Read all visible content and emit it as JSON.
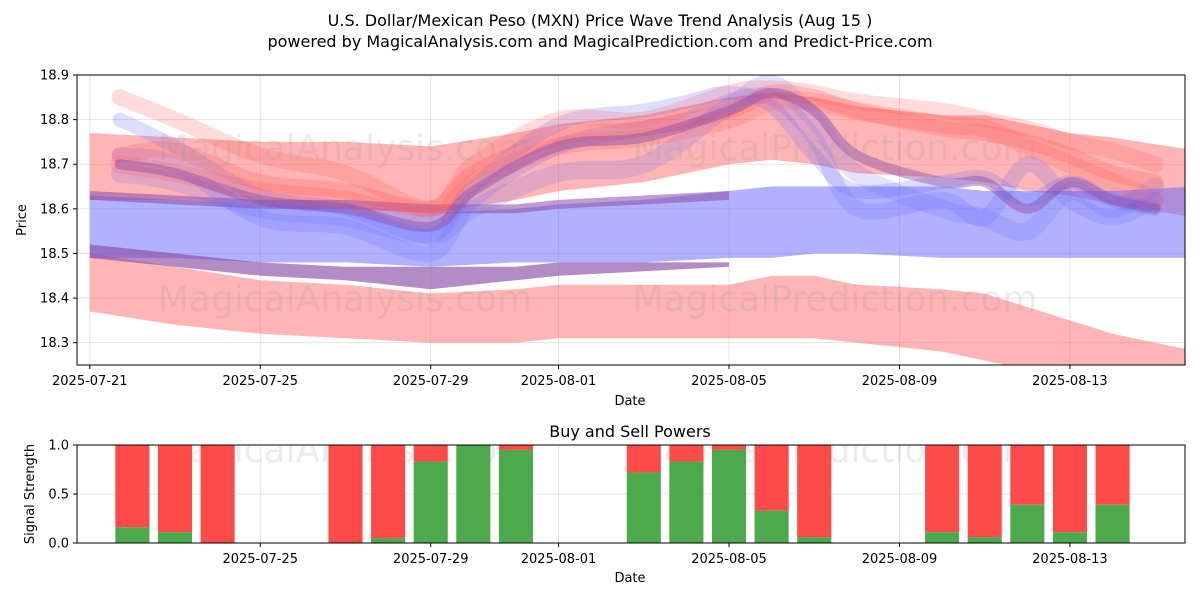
{
  "chart_data": [
    {
      "type": "area",
      "title_line1": "U.S. Dollar/Mexican Peso (MXN) Price Wave Trend Analysis (Aug 15 )",
      "title_line2": "powered by MagicalAnalysis.com and MagicalPrediction.com and Predict-Price.com",
      "xlabel": "Date",
      "ylabel": "Price",
      "xlim_days": [
        -0.3,
        25.7
      ],
      "ylim": [
        18.25,
        18.9
      ],
      "yticks": [
        18.3,
        18.4,
        18.5,
        18.6,
        18.7,
        18.8,
        18.9
      ],
      "xticks": [
        {
          "day": 0,
          "label": "2025-07-21"
        },
        {
          "day": 4,
          "label": "2025-07-25"
        },
        {
          "day": 8,
          "label": "2025-07-29"
        },
        {
          "day": 11,
          "label": "2025-08-01"
        },
        {
          "day": 15,
          "label": "2025-08-05"
        },
        {
          "day": 19,
          "label": "2025-08-09"
        },
        {
          "day": 23,
          "label": "2025-08-13"
        }
      ],
      "watermarks": [
        "MagicalAnalysis.com",
        "MagicalPrediction.com"
      ],
      "colors": {
        "red": "#ff5a5a",
        "blue": "#6464ff",
        "purple": "#8a4ea8"
      },
      "bands": [
        {
          "name": "lower-red-channel",
          "color": "red",
          "opacity": 0.45,
          "x": [
            0,
            2,
            4,
            6,
            8,
            10,
            11,
            13,
            15,
            16,
            17,
            18,
            20,
            21,
            22,
            23,
            24,
            26
          ],
          "upper": [
            18.5,
            18.47,
            18.44,
            18.43,
            18.41,
            18.42,
            18.43,
            18.43,
            18.43,
            18.45,
            18.45,
            18.43,
            18.42,
            18.41,
            18.38,
            18.35,
            18.32,
            18.28
          ],
          "lower": [
            18.37,
            18.34,
            18.32,
            18.31,
            18.3,
            18.3,
            18.31,
            18.31,
            18.31,
            18.31,
            18.31,
            18.3,
            18.28,
            18.26,
            18.24,
            18.22,
            18.2,
            18.18
          ]
        },
        {
          "name": "upper-red-channel",
          "color": "red",
          "opacity": 0.45,
          "x": [
            0,
            2,
            4,
            6,
            8,
            10,
            11,
            13,
            15,
            16,
            17,
            18,
            20,
            21,
            22,
            23,
            24,
            26
          ],
          "upper": [
            18.77,
            18.76,
            18.75,
            18.75,
            18.74,
            18.77,
            18.79,
            18.81,
            18.85,
            18.86,
            18.85,
            18.83,
            18.81,
            18.81,
            18.79,
            18.77,
            18.76,
            18.73
          ],
          "lower": [
            18.62,
            18.62,
            18.61,
            18.6,
            18.59,
            18.62,
            18.64,
            18.66,
            18.7,
            18.71,
            18.7,
            18.68,
            18.67,
            18.66,
            18.64,
            18.63,
            18.61,
            18.58
          ]
        },
        {
          "name": "blue-channel",
          "color": "blue",
          "opacity": 0.5,
          "x": [
            0,
            2,
            4,
            6,
            8,
            10,
            11,
            13,
            15,
            16,
            17,
            18,
            20,
            21,
            22,
            23,
            24,
            26
          ],
          "upper": [
            18.63,
            18.62,
            18.61,
            18.6,
            18.59,
            18.6,
            18.61,
            18.62,
            18.64,
            18.65,
            18.65,
            18.65,
            18.65,
            18.64,
            18.64,
            18.64,
            18.64,
            18.65
          ],
          "lower": [
            18.49,
            18.49,
            18.48,
            18.48,
            18.47,
            18.48,
            18.48,
            18.48,
            18.49,
            18.49,
            18.5,
            18.5,
            18.49,
            18.49,
            18.49,
            18.49,
            18.49,
            18.49
          ]
        },
        {
          "name": "purple-overlap",
          "color": "purple",
          "opacity": 0.65,
          "x": [
            0,
            2,
            4,
            6,
            8,
            10,
            11,
            13,
            15
          ],
          "upper": [
            18.52,
            18.5,
            18.48,
            18.47,
            18.47,
            18.47,
            18.48,
            18.48,
            18.48
          ],
          "lower": [
            18.49,
            18.47,
            18.45,
            18.44,
            18.42,
            18.44,
            18.45,
            18.46,
            18.47
          ]
        },
        {
          "name": "purple-top-edge",
          "color": "purple",
          "opacity": 0.55,
          "x": [
            0,
            2,
            4,
            6,
            8,
            10,
            11,
            13,
            15
          ],
          "upper": [
            18.64,
            18.63,
            18.62,
            18.62,
            18.61,
            18.61,
            18.62,
            18.63,
            18.64
          ],
          "lower": [
            18.62,
            18.61,
            18.6,
            18.6,
            18.59,
            18.59,
            18.6,
            18.61,
            18.62
          ]
        }
      ],
      "waves": [
        {
          "name": "wave-blue-1",
          "color": "blue",
          "opacity": 0.22,
          "width": 14,
          "x": [
            0.7,
            2,
            4,
            6,
            8,
            9,
            11,
            13,
            14,
            15,
            16,
            17,
            18,
            20,
            21,
            22,
            23,
            24,
            25
          ],
          "y": [
            18.8,
            18.74,
            18.63,
            18.6,
            18.54,
            18.65,
            18.79,
            18.82,
            18.84,
            18.86,
            18.83,
            18.72,
            18.64,
            18.66,
            18.67,
            18.62,
            18.66,
            18.62,
            18.6
          ]
        },
        {
          "name": "wave-blue-2",
          "color": "blue",
          "opacity": 0.2,
          "width": 16,
          "x": [
            0.7,
            2,
            4,
            6,
            8,
            9,
            11,
            13,
            14,
            15,
            16,
            17,
            18,
            20,
            21,
            22,
            23,
            24,
            25
          ],
          "y": [
            18.72,
            18.7,
            18.58,
            18.56,
            18.5,
            18.62,
            18.74,
            18.78,
            18.8,
            18.84,
            18.85,
            18.76,
            18.6,
            18.62,
            18.58,
            18.7,
            18.62,
            18.58,
            18.62
          ]
        },
        {
          "name": "wave-blue-3",
          "color": "blue",
          "opacity": 0.18,
          "width": 18,
          "x": [
            0.7,
            2,
            4,
            6,
            8,
            9,
            11,
            13,
            15,
            16,
            17,
            18,
            20,
            21,
            22,
            23,
            24,
            25
          ],
          "y": [
            18.68,
            18.66,
            18.6,
            18.58,
            18.54,
            18.6,
            18.68,
            18.7,
            18.83,
            18.88,
            18.8,
            18.68,
            18.6,
            18.58,
            18.55,
            18.64,
            18.6,
            18.65
          ]
        },
        {
          "name": "wave-red-1",
          "color": "red",
          "opacity": 0.25,
          "width": 16,
          "x": [
            0.7,
            2,
            4,
            6,
            8,
            9,
            11,
            13,
            15,
            16,
            17,
            18,
            20,
            21,
            22,
            23,
            24,
            25
          ],
          "y": [
            18.72,
            18.73,
            18.66,
            18.64,
            18.6,
            18.68,
            18.76,
            18.78,
            18.82,
            18.86,
            18.85,
            18.82,
            18.78,
            18.77,
            18.75,
            18.72,
            18.68,
            18.66
          ]
        },
        {
          "name": "wave-red-2",
          "color": "red",
          "opacity": 0.22,
          "width": 16,
          "x": [
            0.7,
            2,
            4,
            6,
            8,
            9,
            11,
            13,
            15,
            16,
            17,
            18,
            20,
            21,
            22,
            23,
            24,
            25
          ],
          "y": [
            18.85,
            18.8,
            18.72,
            18.68,
            18.6,
            18.7,
            18.8,
            18.8,
            18.86,
            18.87,
            18.86,
            18.84,
            18.82,
            18.8,
            18.78,
            18.75,
            18.73,
            18.7
          ]
        },
        {
          "name": "wave-red-3",
          "color": "red",
          "opacity": 0.22,
          "width": 18,
          "x": [
            0.7,
            2,
            4,
            6,
            8,
            9,
            11,
            13,
            15,
            16,
            17,
            18,
            20,
            21,
            22,
            23,
            24,
            25
          ],
          "y": [
            18.7,
            18.68,
            18.64,
            18.62,
            18.58,
            18.66,
            18.74,
            18.76,
            18.8,
            18.84,
            18.84,
            18.82,
            18.79,
            18.78,
            18.74,
            18.7,
            18.66,
            18.62
          ]
        },
        {
          "name": "wave-purple-1",
          "color": "purple",
          "opacity": 0.45,
          "width": 10,
          "x": [
            0.7,
            2,
            4,
            6,
            8,
            9,
            11,
            13,
            15,
            16,
            17,
            18,
            20,
            21,
            22,
            23,
            24,
            25
          ],
          "y": [
            18.7,
            18.68,
            18.62,
            18.6,
            18.56,
            18.64,
            18.74,
            18.76,
            18.82,
            18.86,
            18.82,
            18.72,
            18.66,
            18.66,
            18.6,
            18.66,
            18.62,
            18.6
          ]
        }
      ]
    },
    {
      "type": "bar",
      "title": "Buy and Sell Powers",
      "xlabel": "Date",
      "ylabel": "Signal Strength",
      "ylim": [
        0,
        1
      ],
      "yticks": [
        0,
        0.5,
        1
      ],
      "xticks": [
        {
          "day": 4,
          "label": "2025-07-25"
        },
        {
          "day": 8,
          "label": "2025-07-29"
        },
        {
          "day": 11,
          "label": "2025-08-01"
        },
        {
          "day": 15,
          "label": "2025-08-05"
        },
        {
          "day": 19,
          "label": "2025-08-09"
        },
        {
          "day": 23,
          "label": "2025-08-13"
        }
      ],
      "colors": {
        "buy": "#4caa4c",
        "sell": "#ff4a4a"
      },
      "days": [
        1,
        2,
        3,
        6,
        7,
        8,
        9,
        10,
        13,
        14,
        15,
        16,
        17,
        20,
        21,
        22,
        23,
        24
      ],
      "buy": [
        0.16,
        0.11,
        0.0,
        0.0,
        0.05,
        0.83,
        1.0,
        0.95,
        0.72,
        0.83,
        0.95,
        0.33,
        0.06,
        0.11,
        0.06,
        0.39,
        0.11,
        0.39
      ],
      "watermarks": [
        "MagicalAnalysis.com",
        "MagicalPrediction.com"
      ]
    }
  ]
}
